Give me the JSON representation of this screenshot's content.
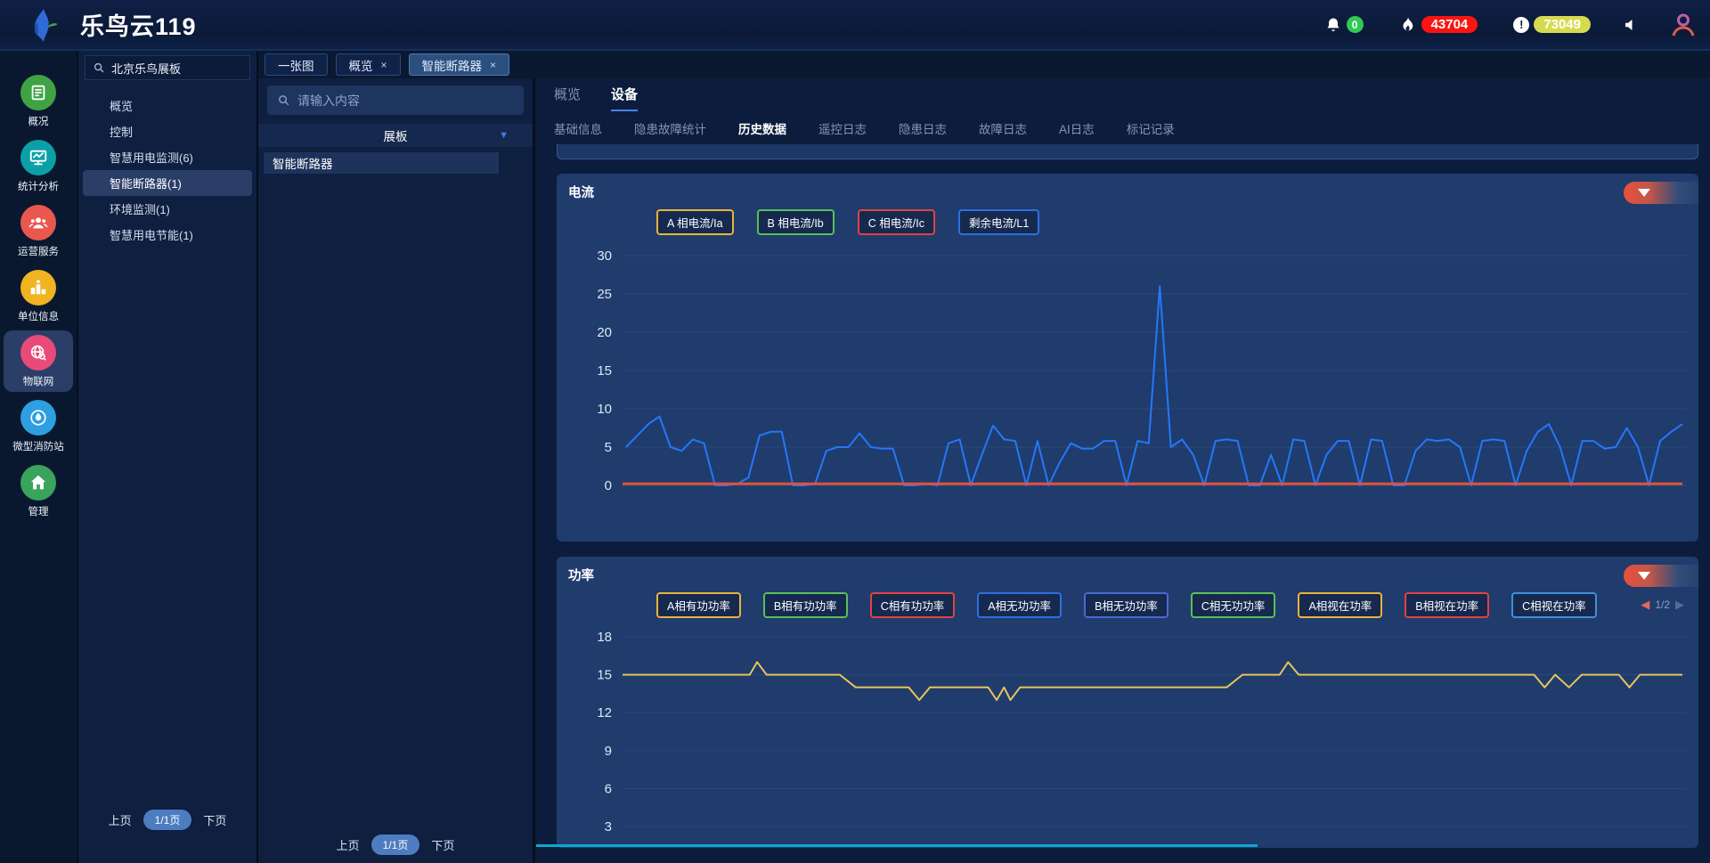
{
  "header": {
    "title": "乐鸟云119",
    "logo_icon": "bird-logo-icon",
    "notifications": {
      "bell_icon": "bell-icon",
      "bell_count": "0",
      "fire_icon": "flame-icon",
      "fire_count": "43704",
      "alert_icon": "alert-circle-icon",
      "alert_exclamation": "!",
      "alert_count": "73049",
      "speaker_icon": "speaker-icon",
      "avatar_icon": "avatar-icon"
    },
    "colors": {
      "bell_badge": "#2fca52",
      "fire_badge": "#fb1410",
      "alert_badge": "#d6da50"
    }
  },
  "sidebar": {
    "items": [
      {
        "label": "概况",
        "icon": "document-icon",
        "color": "#3fa345",
        "active": false
      },
      {
        "label": "统计分析",
        "icon": "monitor-chart-icon",
        "color": "#0ba0a8",
        "active": false
      },
      {
        "label": "运营服务",
        "icon": "people-icon",
        "color": "#e8584f",
        "active": false
      },
      {
        "label": "单位信息",
        "icon": "podium-icon",
        "color": "#efb41f",
        "active": false
      },
      {
        "label": "物联网",
        "icon": "globe-search-icon",
        "color": "#e84b78",
        "active": true
      },
      {
        "label": "微型消防站",
        "icon": "fire-station-icon",
        "color": "#2e9fe0",
        "active": false
      },
      {
        "label": "管理",
        "icon": "home-icon",
        "color": "#3aa35c",
        "active": false
      }
    ]
  },
  "panel2": {
    "search_value": "北京乐鸟展板",
    "search_icon": "search-icon",
    "items": [
      {
        "label": "概览",
        "selected": false
      },
      {
        "label": "控制",
        "selected": false
      },
      {
        "label": "智慧用电监测(6)",
        "selected": false
      },
      {
        "label": "智能断路器(1)",
        "selected": true
      },
      {
        "label": "环境监测(1)",
        "selected": false
      },
      {
        "label": "智慧用电节能(1)",
        "selected": false
      }
    ],
    "pager": {
      "prev": "上页",
      "page": "1/1页",
      "next": "下页"
    }
  },
  "tabbar": {
    "tabs": [
      {
        "label": "一张图",
        "closable": false,
        "active": false
      },
      {
        "label": "概览",
        "closable": true,
        "active": false
      },
      {
        "label": "智能断路器",
        "closable": true,
        "active": true
      }
    ],
    "close_glyph": "×"
  },
  "panel3": {
    "search_placeholder": "请输入内容",
    "search_icon": "search-icon",
    "group_header": "展板",
    "dropdown_icon": "chevron-down-icon",
    "dropdown_glyph": "▼",
    "items": [
      "智能断路器"
    ],
    "pager": {
      "prev": "上页",
      "page": "1/1页",
      "next": "下页"
    }
  },
  "main": {
    "tabs": [
      {
        "label": "概览",
        "active": false
      },
      {
        "label": "设备",
        "active": true
      }
    ],
    "subtabs": [
      {
        "label": "基础信息",
        "active": false
      },
      {
        "label": "隐患故障统计",
        "active": false
      },
      {
        "label": "历史数据",
        "active": true
      },
      {
        "label": "遥控日志",
        "active": false
      },
      {
        "label": "隐患日志",
        "active": false
      },
      {
        "label": "故障日志",
        "active": false
      },
      {
        "label": "AI日志",
        "active": false
      },
      {
        "label": "标记记录",
        "active": false
      }
    ]
  },
  "chart_data": [
    {
      "type": "line",
      "title": "电流",
      "ylim": [
        0,
        30
      ],
      "yticks": [
        0,
        5,
        10,
        15,
        20,
        25,
        30
      ],
      "grid": true,
      "legend_position": "top",
      "legend": [
        {
          "label": "A 相电流/Ia",
          "color": "#e8b33e"
        },
        {
          "label": "B 相电流/Ib",
          "color": "#5abf5a"
        },
        {
          "label": "C 相电流/Ic",
          "color": "#e04343"
        },
        {
          "label": "剩余电流/L1",
          "color": "#2f6fe0"
        }
      ],
      "collapse_icon": "collapse-triangle-icon",
      "series": [
        {
          "name": "剩余电流/L1",
          "color": "#2677f8",
          "values": [
            5,
            6.5,
            8,
            9,
            5,
            4.5,
            6,
            5.5,
            0,
            0,
            0.2,
            1,
            6.5,
            7,
            7,
            0,
            0,
            0.2,
            4.5,
            5,
            5,
            6.8,
            5,
            4.8,
            4.8,
            0,
            0,
            0.2,
            0,
            5.5,
            6,
            0,
            4,
            7.8,
            6,
            5.8,
            0,
            5.8,
            0,
            3,
            5.5,
            4.8,
            4.8,
            5.8,
            5.8,
            0,
            5.8,
            5.5,
            26,
            5,
            6,
            4,
            0,
            5.8,
            6,
            5.8,
            0,
            0,
            4,
            0,
            6,
            5.8,
            0,
            4,
            5.8,
            5.8,
            0,
            6,
            5.8,
            0,
            0,
            4.5,
            6,
            5.8,
            6,
            5,
            0,
            5.8,
            6,
            5.8,
            0,
            4.5,
            7,
            8,
            5,
            0,
            5.8,
            5.8,
            4.8,
            5,
            7.5,
            5,
            0,
            5.8,
            7,
            8
          ]
        },
        {
          "name": "C 相电流/Ic",
          "color": "#e2523a",
          "constant": 0.2
        }
      ]
    },
    {
      "type": "line",
      "title": "功率",
      "ylim": [
        3,
        18
      ],
      "yticks": [
        3,
        6,
        9,
        12,
        15,
        18
      ],
      "grid": true,
      "legend_position": "top",
      "legend": [
        {
          "label": "A相有功功率",
          "color": "#e8b33e"
        },
        {
          "label": "B相有功功率",
          "color": "#5abf5a"
        },
        {
          "label": "C相有功功率",
          "color": "#e04343"
        },
        {
          "label": "A相无功功率",
          "color": "#2f6fe0"
        },
        {
          "label": "B相无功功率",
          "color": "#4a69d2"
        },
        {
          "label": "C相无功功率",
          "color": "#5abf5a"
        },
        {
          "label": "A相视在功率",
          "color": "#e8b33e"
        },
        {
          "label": "B相视在功率",
          "color": "#e04343"
        },
        {
          "label": "C相视在功率",
          "color": "#3f8fd9"
        }
      ],
      "legend_pager": {
        "prev": "◀",
        "label": "1/2",
        "next": "▶"
      },
      "collapse_icon": "collapse-triangle-icon",
      "series": [
        {
          "name": "A相有功功率",
          "color": "#e6c35c",
          "points": [
            [
              0,
              15
            ],
            [
              12,
              15
            ],
            [
              12.7,
              16
            ],
            [
              13.6,
              15
            ],
            [
              20.5,
              15
            ],
            [
              22,
              14
            ],
            [
              27,
              14
            ],
            [
              28,
              13
            ],
            [
              29,
              14
            ],
            [
              34.5,
              14
            ],
            [
              35.3,
              13
            ],
            [
              36,
              14
            ],
            [
              36.6,
              13
            ],
            [
              37.5,
              14
            ],
            [
              57,
              14
            ],
            [
              58.5,
              15
            ],
            [
              62,
              15
            ],
            [
              62.8,
              16
            ],
            [
              63.8,
              15
            ],
            [
              86,
              15
            ],
            [
              87,
              14
            ],
            [
              88,
              15
            ],
            [
              89.3,
              14
            ],
            [
              90.5,
              15
            ],
            [
              94,
              15
            ],
            [
              95,
              14
            ],
            [
              96,
              15
            ],
            [
              100,
              15
            ]
          ]
        }
      ]
    }
  ]
}
